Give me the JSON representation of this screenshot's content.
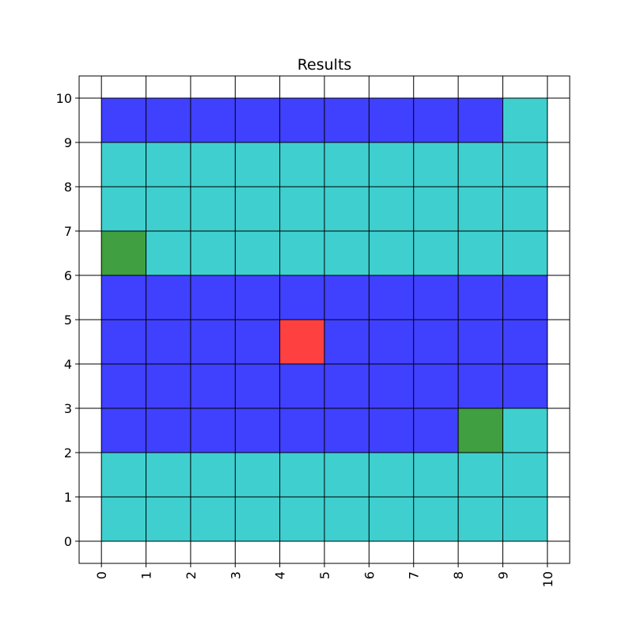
{
  "chart_data": {
    "type": "heatmap",
    "title": "Results",
    "xlabel": "",
    "ylabel": "",
    "xlim": [
      -0.5,
      10.5
    ],
    "ylim": [
      -0.5,
      10.5
    ],
    "x_ticks": [
      "0",
      "1",
      "2",
      "3",
      "4",
      "5",
      "6",
      "7",
      "8",
      "9",
      "10"
    ],
    "y_ticks": [
      "0",
      "1",
      "2",
      "3",
      "4",
      "5",
      "6",
      "7",
      "8",
      "9",
      "10"
    ],
    "grid": true,
    "x_tick_rotation": "vertical",
    "colors": {
      "cyan": "#3fcfcf",
      "blue": "#4040ff",
      "green": "#409f40",
      "red": "#ff4040"
    },
    "cell_size": 1,
    "grid_origin": [
      0,
      0
    ],
    "rows_from_bottom": [
      [
        "cyan",
        "cyan",
        "cyan",
        "cyan",
        "cyan",
        "cyan",
        "cyan",
        "cyan",
        "cyan",
        "cyan"
      ],
      [
        "cyan",
        "cyan",
        "cyan",
        "cyan",
        "cyan",
        "cyan",
        "cyan",
        "cyan",
        "cyan",
        "cyan"
      ],
      [
        "blue",
        "blue",
        "blue",
        "blue",
        "blue",
        "blue",
        "blue",
        "blue",
        "green",
        "cyan"
      ],
      [
        "blue",
        "blue",
        "blue",
        "blue",
        "blue",
        "blue",
        "blue",
        "blue",
        "blue",
        "blue"
      ],
      [
        "blue",
        "blue",
        "blue",
        "blue",
        "red",
        "blue",
        "blue",
        "blue",
        "blue",
        "blue"
      ],
      [
        "blue",
        "blue",
        "blue",
        "blue",
        "blue",
        "blue",
        "blue",
        "blue",
        "blue",
        "blue"
      ],
      [
        "green",
        "cyan",
        "cyan",
        "cyan",
        "cyan",
        "cyan",
        "cyan",
        "cyan",
        "cyan",
        "cyan"
      ],
      [
        "cyan",
        "cyan",
        "cyan",
        "cyan",
        "cyan",
        "cyan",
        "cyan",
        "cyan",
        "cyan",
        "cyan"
      ],
      [
        "cyan",
        "cyan",
        "cyan",
        "cyan",
        "cyan",
        "cyan",
        "cyan",
        "cyan",
        "cyan",
        "cyan"
      ],
      [
        "blue",
        "blue",
        "blue",
        "blue",
        "blue",
        "blue",
        "blue",
        "blue",
        "blue",
        "cyan"
      ]
    ]
  }
}
